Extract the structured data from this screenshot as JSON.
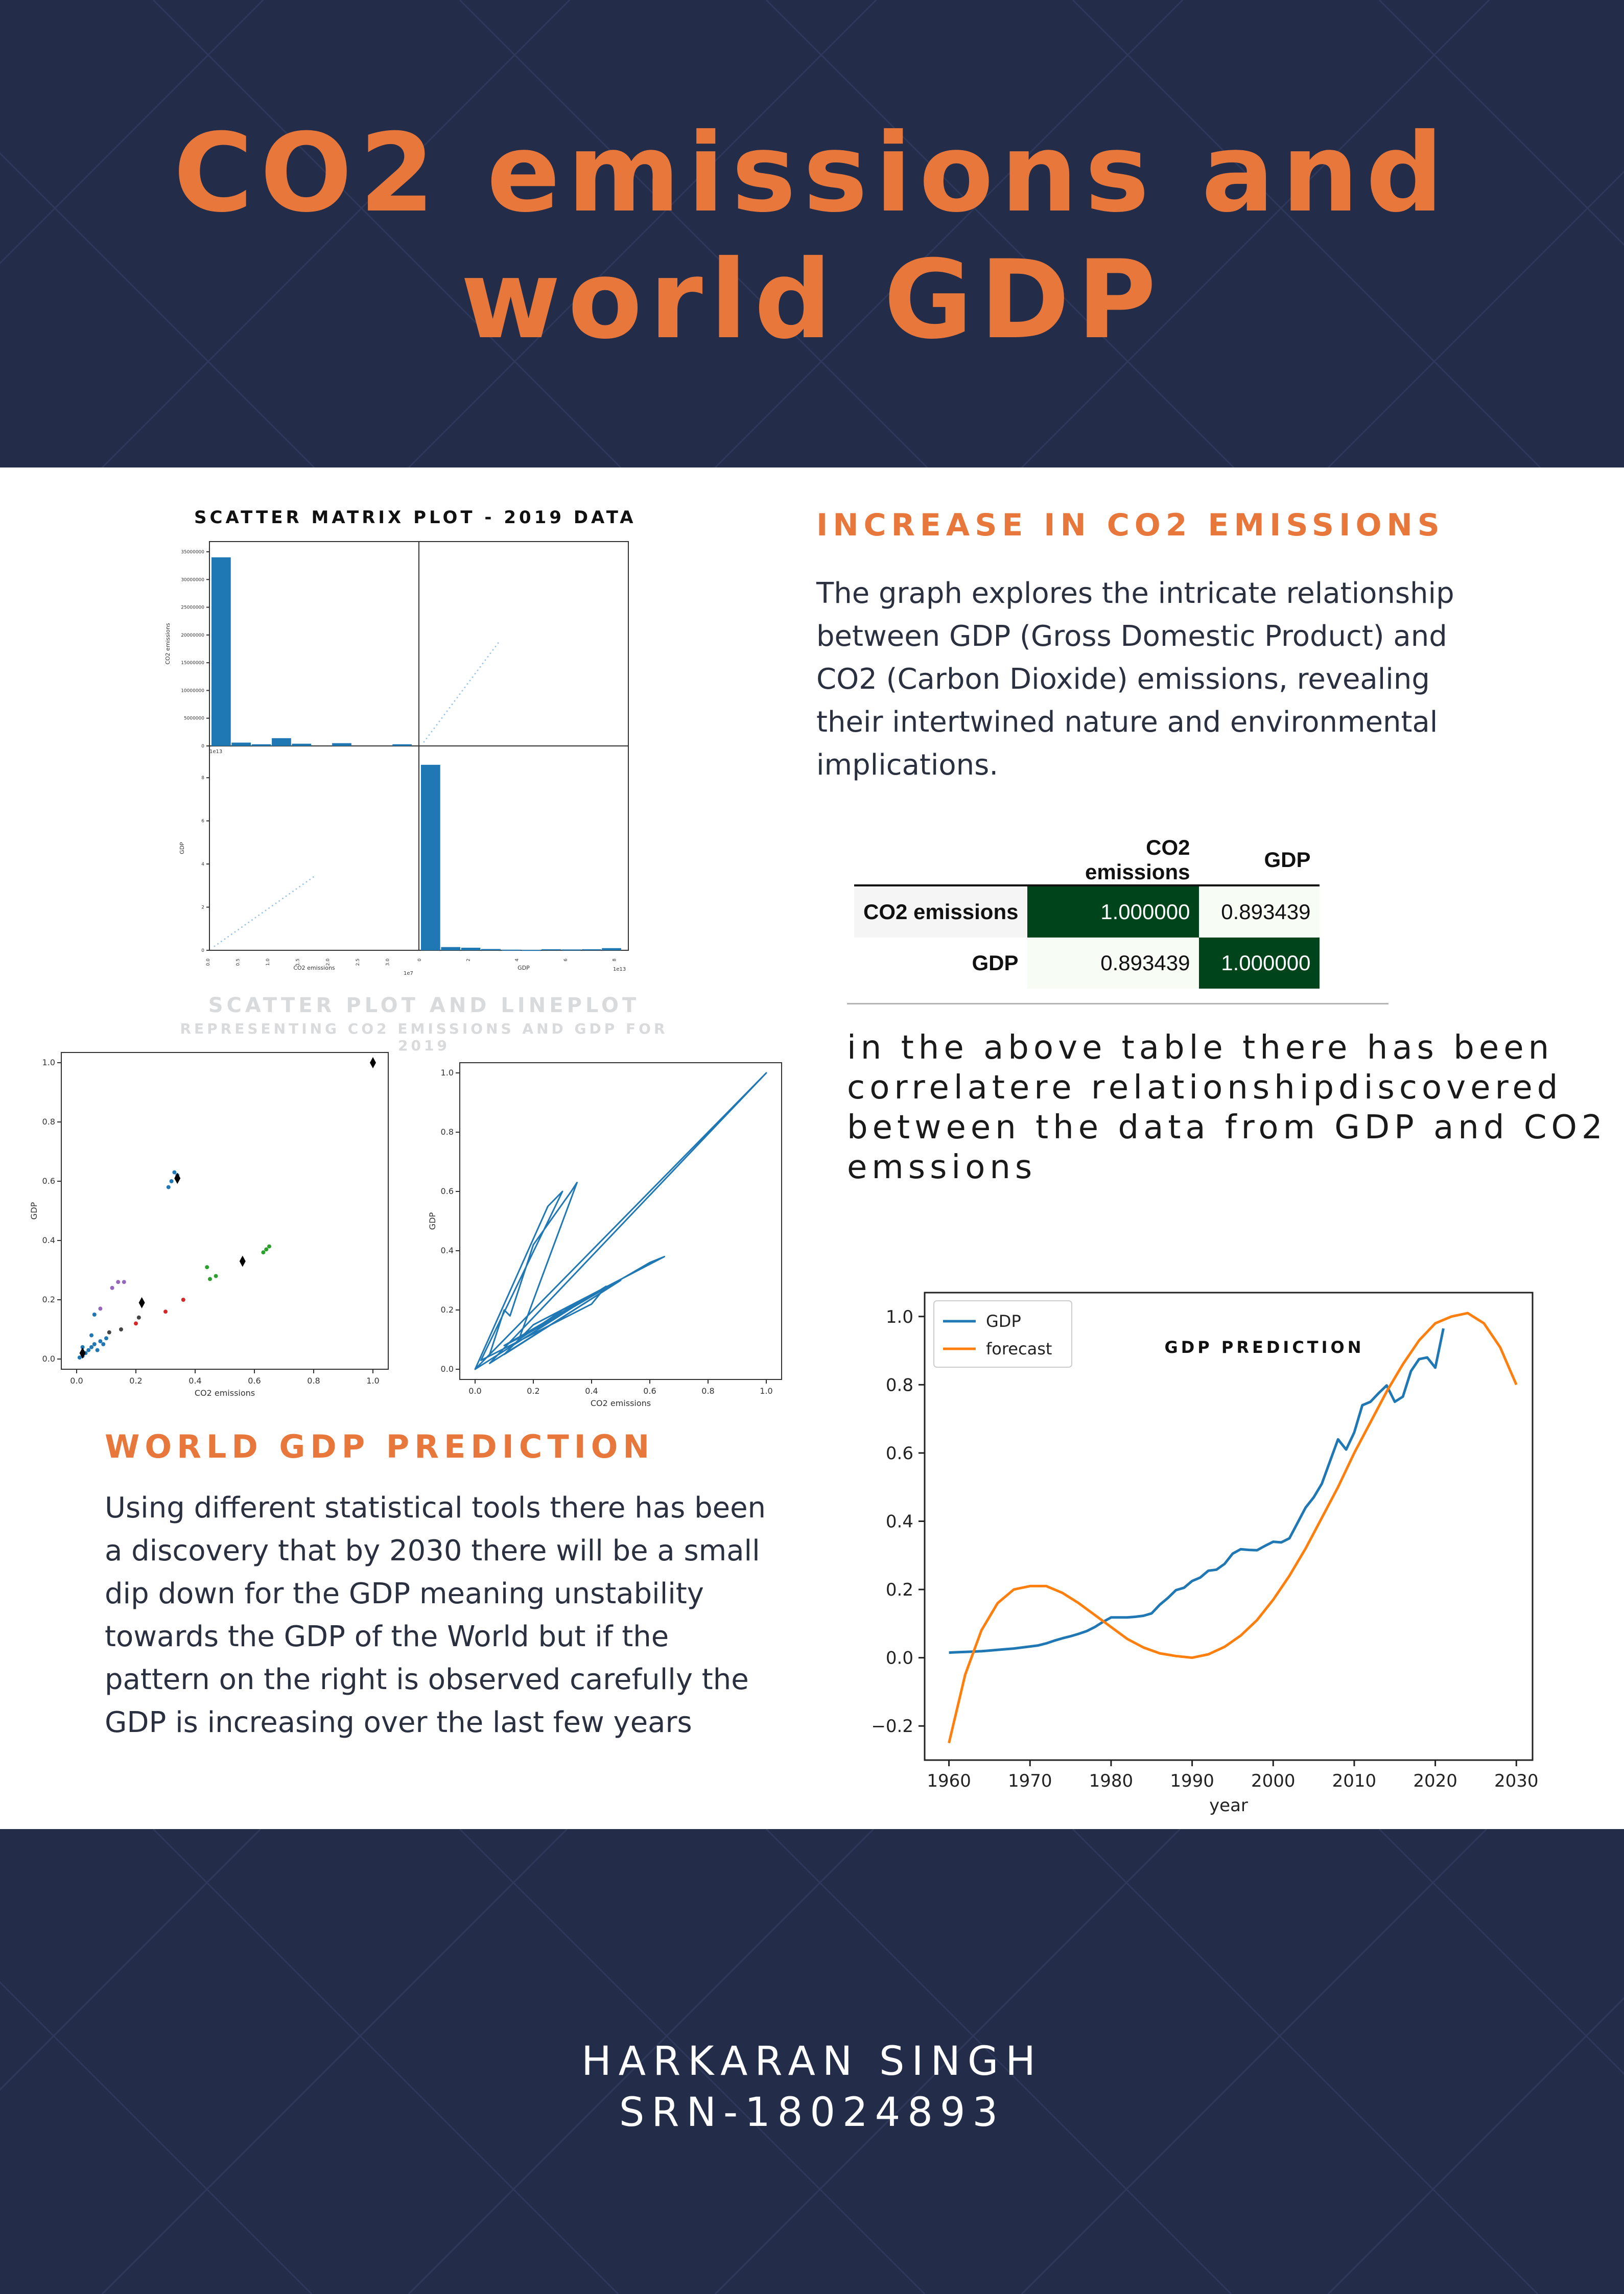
{
  "poster": {
    "title_line1": "CO2 emissions and",
    "title_line2": "world GDP",
    "colors": {
      "navy": "#232c48",
      "orange": "#e8773b",
      "plot_blue": "#1f77b4",
      "plot_orange": "#ff7f0e",
      "table_dark_green": "#00441b"
    }
  },
  "section_co2": {
    "heading": "INCREASE IN CO2 EMISSIONS",
    "text": "The graph explores the intricate relationship between GDP (Gross Domestic Product) and CO2 (Carbon Dioxide) emissions, revealing their intertwined nature and environmental implications."
  },
  "table_note": "in the above table there has been correlatere relationshipdiscovered between the data from GDP and CO2 emssions",
  "section_gdp": {
    "heading": "WORLD GDP PREDICTION",
    "text": "Using different statistical tools there has been a discovery that by 2030 there will be a small dip down for the GDP meaning unstability towards the GDP of the World but if the pattern on the right is observed carefully the GDP is increasing over the last few years"
  },
  "author": {
    "name": "HARKARAN SINGH",
    "srn": "SRN-18024893"
  },
  "chart_data": [
    {
      "type": "scatter-matrix",
      "title": "SCATTER MATRIX PLOT - 2019 DATA",
      "variables": [
        "CO2 emissions",
        "GDP"
      ],
      "co2_hist": {
        "bin_edges_scaled_1e7": [
          0,
          1,
          2,
          3,
          4,
          5,
          6,
          7,
          8,
          9,
          10
        ],
        "counts": [
          34000000,
          600000,
          300000,
          1400000,
          400000,
          0,
          500000,
          0,
          0,
          300000
        ],
        "ylim": [
          0,
          35000000
        ],
        "yticks": [
          0,
          5000000,
          10000000,
          15000000,
          20000000,
          25000000,
          30000000,
          35000000
        ],
        "ytick_labels": [
          "0",
          "5000000",
          "10000000",
          "15000000",
          "20000000",
          "25000000",
          "30000000",
          "35000000"
        ],
        "ylabel": "CO2 emissions"
      },
      "gdp_hist": {
        "counts": [
          8.6,
          0.15,
          0.12,
          0.06,
          0.03,
          0.02,
          0.05,
          0.04,
          0.05,
          0.1
        ],
        "ylim": [
          0,
          9
        ],
        "yticks": [
          0,
          2,
          4,
          6,
          8
        ],
        "ylabel": "GDP"
      },
      "xlabels": [
        "CO2 emissions",
        "GDP"
      ],
      "offset_labels": [
        "1e13",
        "1e7",
        "1e13"
      ],
      "co2_xticks": [
        "0.0",
        "0.5",
        "1.0",
        "1.5",
        "2.0",
        "2.5",
        "3.0"
      ],
      "gdp_xticks": [
        "0",
        "2",
        "4",
        "6",
        "8"
      ]
    },
    {
      "type": "scatter",
      "title": "SCATTER PLOT AND LINEPLOT",
      "subtitle": "REPRESENTING CO2 EMISSIONS AND GDP FOR 2019",
      "xlabel": "CO2 emissions",
      "ylabel": "GDP",
      "xlim": [
        0,
        1
      ],
      "ylim": [
        0,
        1
      ],
      "ticks": [
        "0.0",
        "0.2",
        "0.4",
        "0.6",
        "0.8",
        "1.0"
      ],
      "clusters": [
        {
          "color": "#1f77b4",
          "points": [
            [
              0.01,
              0.005
            ],
            [
              0.02,
              0.01
            ],
            [
              0.03,
              0.02
            ],
            [
              0.04,
              0.03
            ],
            [
              0.05,
              0.04
            ],
            [
              0.06,
              0.05
            ],
            [
              0.07,
              0.03
            ],
            [
              0.08,
              0.06
            ],
            [
              0.02,
              0.04
            ],
            [
              0.05,
              0.08
            ],
            [
              0.09,
              0.05
            ],
            [
              0.1,
              0.07
            ],
            [
              0.06,
              0.15
            ],
            [
              0.32,
              0.6
            ],
            [
              0.34,
              0.62
            ],
            [
              0.33,
              0.63
            ],
            [
              0.31,
              0.58
            ]
          ]
        },
        {
          "color": "#2ca02c",
          "points": [
            [
              0.45,
              0.27
            ],
            [
              0.47,
              0.28
            ],
            [
              0.44,
              0.31
            ],
            [
              0.63,
              0.36
            ],
            [
              0.64,
              0.37
            ],
            [
              0.65,
              0.38
            ]
          ]
        },
        {
          "color": "#9467bd",
          "points": [
            [
              0.14,
              0.26
            ],
            [
              0.16,
              0.26
            ],
            [
              0.12,
              0.24
            ],
            [
              0.08,
              0.17
            ]
          ]
        },
        {
          "color": "#d62728",
          "points": [
            [
              0.3,
              0.16
            ],
            [
              0.36,
              0.2
            ],
            [
              0.2,
              0.12
            ]
          ]
        },
        {
          "color": "#444444",
          "points": [
            [
              0.21,
              0.14
            ],
            [
              0.15,
              0.1
            ],
            [
              0.11,
              0.09
            ]
          ]
        }
      ],
      "centroids": [
        [
          0.02,
          0.02
        ],
        [
          0.22,
          0.19
        ],
        [
          0.34,
          0.61
        ],
        [
          0.56,
          0.33
        ],
        [
          1.0,
          1.0
        ]
      ]
    },
    {
      "type": "line",
      "xlabel": "CO2 emissions",
      "ylabel": "GDP",
      "xlim": [
        0,
        1
      ],
      "ylim": [
        0,
        1
      ],
      "ticks": [
        "0.0",
        "0.2",
        "0.4",
        "0.6",
        "0.8",
        "1.0"
      ],
      "path": [
        [
          0,
          0
        ],
        [
          0.05,
          0.05
        ],
        [
          0.1,
          0.2
        ],
        [
          0.12,
          0.18
        ],
        [
          0.2,
          0.42
        ],
        [
          0.33,
          0.6
        ],
        [
          0.35,
          0.63
        ],
        [
          0.15,
          0.1
        ],
        [
          0.3,
          0.2
        ],
        [
          0.4,
          0.25
        ],
        [
          0.1,
          0.08
        ],
        [
          0.18,
          0.12
        ],
        [
          0.6,
          0.36
        ],
        [
          0.65,
          0.38
        ],
        [
          0.2,
          0.15
        ],
        [
          0.1,
          0.05
        ],
        [
          0.5,
          0.3
        ],
        [
          0.05,
          0.02
        ],
        [
          1.0,
          1.0
        ],
        [
          0,
          0
        ],
        [
          0.25,
          0.55
        ],
        [
          0.3,
          0.6
        ],
        [
          0.02,
          0.03
        ],
        [
          0.4,
          0.22
        ],
        [
          0.45,
          0.28
        ],
        [
          0,
          0
        ]
      ]
    },
    {
      "type": "line",
      "title": "GDP PREDICTION",
      "xlabel": "year",
      "xlim": [
        1957,
        2032
      ],
      "ylim": [
        -0.3,
        1.07
      ],
      "xticks": [
        1960,
        1970,
        1980,
        1990,
        2000,
        2010,
        2020,
        2030
      ],
      "yticks": [
        -0.2,
        0.0,
        0.2,
        0.4,
        0.6,
        0.8,
        1.0
      ],
      "ytick_labels": [
        "−0.2",
        "0.0",
        "0.2",
        "0.4",
        "0.6",
        "0.8",
        "1.0"
      ],
      "legend_position": "top-left",
      "series": [
        {
          "name": "GDP",
          "color": "#1f77b4",
          "x": [
            1960,
            1961,
            1962,
            1963,
            1964,
            1965,
            1966,
            1967,
            1968,
            1969,
            1970,
            1971,
            1972,
            1973,
            1974,
            1975,
            1976,
            1977,
            1978,
            1979,
            1980,
            1981,
            1982,
            1983,
            1984,
            1985,
            1986,
            1987,
            1988,
            1989,
            1990,
            1991,
            1992,
            1993,
            1994,
            1995,
            1996,
            1997,
            1998,
            1999,
            2000,
            2001,
            2002,
            2003,
            2004,
            2005,
            2006,
            2007,
            2008,
            2009,
            2010,
            2011,
            2012,
            2013,
            2014,
            2015,
            2016,
            2017,
            2018,
            2019,
            2020,
            2021
          ],
          "y": [
            0.015,
            0.016,
            0.017,
            0.018,
            0.019,
            0.021,
            0.023,
            0.025,
            0.027,
            0.03,
            0.033,
            0.036,
            0.042,
            0.05,
            0.057,
            0.063,
            0.07,
            0.078,
            0.09,
            0.105,
            0.118,
            0.118,
            0.118,
            0.12,
            0.123,
            0.13,
            0.155,
            0.175,
            0.198,
            0.205,
            0.225,
            0.235,
            0.255,
            0.258,
            0.275,
            0.305,
            0.318,
            0.316,
            0.315,
            0.328,
            0.34,
            0.338,
            0.35,
            0.395,
            0.44,
            0.47,
            0.51,
            0.575,
            0.64,
            0.61,
            0.66,
            0.74,
            0.75,
            0.775,
            0.798,
            0.75,
            0.765,
            0.84,
            0.875,
            0.88,
            0.85,
            0.965
          ]
        },
        {
          "name": "forecast",
          "color": "#ff7f0e",
          "x": [
            1960,
            1962,
            1964,
            1966,
            1968,
            1970,
            1972,
            1974,
            1976,
            1978,
            1980,
            1982,
            1984,
            1986,
            1988,
            1990,
            1992,
            1994,
            1996,
            1998,
            2000,
            2002,
            2004,
            2006,
            2008,
            2010,
            2012,
            2014,
            2016,
            2018,
            2020,
            2022,
            2024,
            2026,
            2028,
            2030
          ],
          "y": [
            -0.25,
            -0.05,
            0.08,
            0.16,
            0.2,
            0.21,
            0.21,
            0.19,
            0.16,
            0.125,
            0.09,
            0.055,
            0.03,
            0.013,
            0.005,
            0.0,
            0.01,
            0.032,
            0.065,
            0.11,
            0.17,
            0.24,
            0.32,
            0.41,
            0.5,
            0.6,
            0.69,
            0.78,
            0.86,
            0.93,
            0.98,
            1.0,
            1.01,
            0.98,
            0.91,
            0.8
          ]
        }
      ]
    }
  ],
  "correlation_table": {
    "columns": [
      "CO2 emissions",
      "GDP"
    ],
    "rows": [
      {
        "label": "CO2 emissions",
        "values": [
          "1.000000",
          "0.893439"
        ],
        "colors": [
          "#00441b",
          "#f7fcf5"
        ]
      },
      {
        "label": "GDP",
        "values": [
          "0.893439",
          "1.000000"
        ],
        "colors": [
          "#f7fcf5",
          "#00441b"
        ]
      }
    ]
  }
}
